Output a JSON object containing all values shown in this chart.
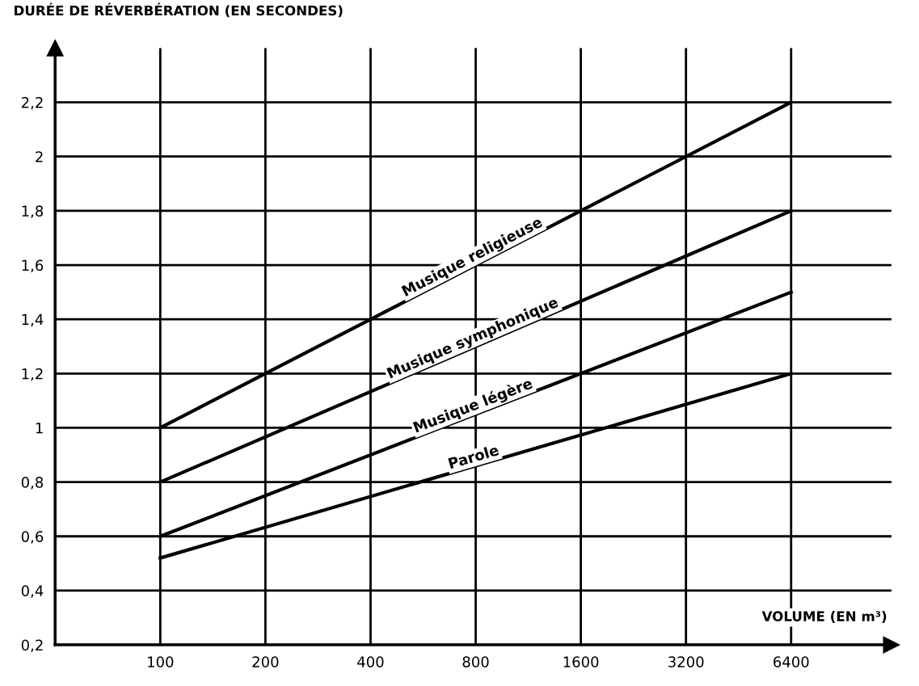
{
  "chart_data": {
    "type": "line",
    "ylabel": "DURÉE DE RÉVERBÉRATION (EN SECONDES)",
    "xlabel": "VOLUME (EN m³)",
    "log": "x",
    "x": [
      100,
      6400
    ],
    "series": [
      {
        "name": "Musique religieuse",
        "color": "#000000",
        "values": [
          1.0,
          2.2
        ]
      },
      {
        "name": "Musique symphonique",
        "color": "#000000",
        "values": [
          0.8,
          1.8
        ]
      },
      {
        "name": "Musique légère",
        "color": "#000000",
        "values": [
          0.6,
          1.5
        ]
      },
      {
        "name": "Parole",
        "color": "#000000",
        "values": [
          0.52,
          1.2
        ]
      }
    ],
    "xlim": [
      50,
      12400
    ],
    "xticks": [
      100,
      200,
      400,
      800,
      1600,
      3200,
      6400
    ],
    "ylim": [
      0.2,
      2.4
    ],
    "yticks": [
      {
        "value": 0.2,
        "label": "0,2"
      },
      {
        "value": 0.4,
        "label": "0,4"
      },
      {
        "value": 0.6,
        "label": "0,6"
      },
      {
        "value": 0.8,
        "label": "0,8"
      },
      {
        "value": 1,
        "label": "1"
      },
      {
        "value": 1.2,
        "label": "1,2"
      },
      {
        "value": 1.4,
        "label": "1,4"
      },
      {
        "value": 1.6,
        "label": "1,6"
      },
      {
        "value": 1.8,
        "label": "1,8"
      },
      {
        "value": 2,
        "label": "2"
      },
      {
        "value": 2.2,
        "label": "2,2"
      }
    ],
    "grid": true,
    "marker": "none",
    "line_style": "solid"
  }
}
